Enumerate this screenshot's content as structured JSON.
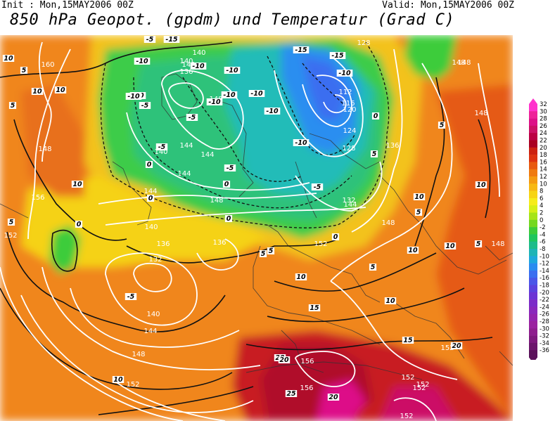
{
  "header": {
    "init": "Init : Mon,15MAY2006 00Z",
    "valid": "Valid: Mon,15MAY2006 00Z",
    "title": "850 hPa Geopot. (gpdm) und Temperatur (Grad C)"
  },
  "legend": {
    "values": [
      "32",
      "30",
      "28",
      "26",
      "24",
      "22",
      "20",
      "18",
      "16",
      "14",
      "12",
      "10",
      "8",
      "6",
      "4",
      "2",
      "0",
      "-2",
      "-4",
      "-6",
      "-8",
      "-10",
      "-12",
      "-14",
      "-16",
      "-18",
      "-20",
      "-22",
      "-24",
      "-26",
      "-28",
      "-30",
      "-32",
      "-34",
      "-36"
    ],
    "colors": [
      "#ff33cc",
      "#ee2299",
      "#dd1188",
      "#cc1166",
      "#bb0044",
      "#aa0022",
      "#cc2211",
      "#dd3311",
      "#e85a10",
      "#ef7a10",
      "#f49a10",
      "#f7b812",
      "#f7d414",
      "#f6ec1a",
      "#d6ef16",
      "#a6e418",
      "#74d820",
      "#3ccc3a",
      "#1ec65e",
      "#1ebc8a",
      "#1eb4b6",
      "#1ea8dc",
      "#2a8cf0",
      "#3a6ef0",
      "#4a56e8",
      "#5a42de",
      "#6c34d4",
      "#7c2cc8",
      "#8a28bc",
      "#9424ae",
      "#9a22a0",
      "#8e1e8e",
      "#7e1a7e",
      "#6c166c",
      "#5a125a"
    ]
  },
  "geopotential_labels": [
    "160",
    "156",
    "152",
    "148",
    "144",
    "140",
    "136",
    "132",
    "128",
    "124",
    "120",
    "116",
    "112"
  ],
  "temperature_labels": [
    "-15",
    "-10",
    "-5",
    "0",
    "5",
    "10",
    "15",
    "20",
    "25"
  ],
  "map_labels": {
    "gp": [
      {
        "t": "160"
      },
      {
        "t": "156"
      },
      {
        "t": "152"
      },
      {
        "t": "148"
      },
      {
        "t": "144"
      },
      {
        "t": "140"
      },
      {
        "t": "136"
      },
      {
        "t": "132"
      },
      {
        "t": "140"
      },
      {
        "t": "144"
      },
      {
        "t": "148"
      },
      {
        "t": "152"
      },
      {
        "t": "144"
      },
      {
        "t": "140"
      },
      {
        "t": "136"
      },
      {
        "t": "144"
      },
      {
        "t": "148"
      },
      {
        "t": "140"
      },
      {
        "t": "148"
      },
      {
        "t": "140"
      },
      {
        "t": "132"
      },
      {
        "t": "128"
      },
      {
        "t": "124"
      },
      {
        "t": "120"
      },
      {
        "t": "116"
      },
      {
        "t": "112"
      },
      {
        "t": "128"
      },
      {
        "t": "144"
      },
      {
        "t": "148"
      },
      {
        "t": "148"
      },
      {
        "t": "152"
      },
      {
        "t": "136"
      },
      {
        "t": "148"
      },
      {
        "t": "148"
      },
      {
        "t": "152"
      },
      {
        "t": "152"
      },
      {
        "t": "156"
      },
      {
        "t": "156"
      },
      {
        "t": "152"
      },
      {
        "t": "152"
      },
      {
        "t": "152"
      },
      {
        "t": "136"
      },
      {
        "t": "140"
      },
      {
        "t": "144"
      },
      {
        "t": "148"
      }
    ],
    "temp": [
      {
        "t": "10"
      },
      {
        "t": "10"
      },
      {
        "t": "5"
      },
      {
        "t": "5"
      },
      {
        "t": "10"
      },
      {
        "t": "5"
      },
      {
        "t": "0"
      },
      {
        "t": "-5"
      },
      {
        "t": "-10"
      },
      {
        "t": "-10"
      },
      {
        "t": "-5"
      },
      {
        "t": "-10"
      },
      {
        "t": "-15"
      },
      {
        "t": "-10"
      },
      {
        "t": "-10"
      },
      {
        "t": "-10"
      },
      {
        "t": "-5"
      },
      {
        "t": "0"
      },
      {
        "t": "-5"
      },
      {
        "t": "-10"
      },
      {
        "t": "-10"
      },
      {
        "t": "-10"
      },
      {
        "t": "-10"
      },
      {
        "t": "-15"
      },
      {
        "t": "-15"
      },
      {
        "t": "-10"
      },
      {
        "t": "-5"
      },
      {
        "t": "0"
      },
      {
        "t": "0"
      },
      {
        "t": "5"
      },
      {
        "t": "5"
      },
      {
        "t": "10"
      },
      {
        "t": "10"
      },
      {
        "t": "5"
      },
      {
        "t": "5"
      },
      {
        "t": "10"
      },
      {
        "t": "10"
      },
      {
        "t": "5"
      },
      {
        "t": "-5"
      },
      {
        "t": "0"
      },
      {
        "t": "0"
      },
      {
        "t": "-5"
      },
      {
        "t": "0"
      },
      {
        "t": "5"
      },
      {
        "t": "10"
      },
      {
        "t": "15"
      },
      {
        "t": "15"
      },
      {
        "t": "20"
      },
      {
        "t": "20"
      },
      {
        "t": "25"
      },
      {
        "t": "20"
      },
      {
        "t": "20"
      },
      {
        "t": "10"
      },
      {
        "t": "10"
      },
      {
        "t": "5"
      },
      {
        "t": "10"
      }
    ]
  }
}
